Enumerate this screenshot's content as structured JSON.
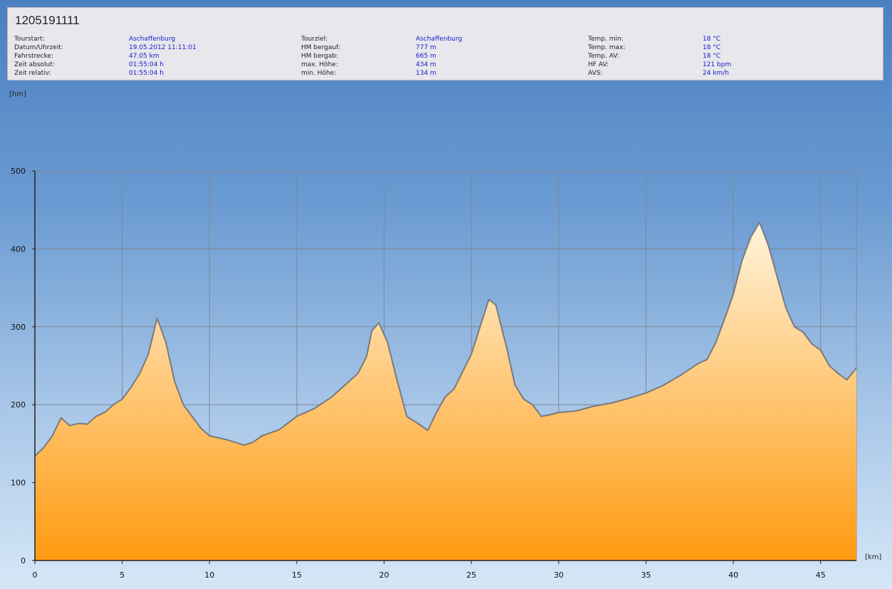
{
  "title": "1205191111",
  "info_columns": [
    [
      {
        "label": "Tourstart:",
        "value": "Aschaffenburg"
      },
      {
        "label": "Datum/Uhrzeit:",
        "value": "19.05.2012 11:11:01"
      },
      {
        "label": "Fahrstrecke:",
        "value": "47.05 km"
      },
      {
        "label": "Zeit absolut:",
        "value": "01:55:04 h"
      },
      {
        "label": "Zeit relativ:",
        "value": "01:55:04 h"
      }
    ],
    [
      {
        "label": "Tourziel:",
        "value": "Aschaffenburg"
      },
      {
        "label": "HM bergauf:",
        "value": "777 m"
      },
      {
        "label": "HM bergab:",
        "value": "665 m"
      },
      {
        "label": "max. Höhe:",
        "value": "434 m"
      },
      {
        "label": "min. Höhe:",
        "value": "134 m"
      }
    ],
    [
      {
        "label": "Temp. min:",
        "value": "18 °C"
      },
      {
        "label": "Temp. max:",
        "value": "18 °C"
      },
      {
        "label": "Temp. AV:",
        "value": "18 °C"
      },
      {
        "label": "HF AV:",
        "value": "121 bpm"
      },
      {
        "label": "AVS:",
        "value": "24 km/h"
      }
    ]
  ],
  "colors": {
    "fill_top": "#fff4dc",
    "fill_bottom": "#ff9a10",
    "line": "#7a7a7a",
    "grid": "#7f8896"
  },
  "chart_data": {
    "type": "area",
    "xlabel": "[km]",
    "ylabel": "[hm]",
    "xlim": [
      0,
      47.05
    ],
    "ylim": [
      0,
      500
    ],
    "xticks": [
      0,
      5,
      10,
      15,
      20,
      25,
      30,
      35,
      40,
      45
    ],
    "yticks": [
      0,
      100,
      200,
      300,
      400,
      500
    ],
    "grid": true,
    "series": [
      {
        "x": [
          0,
          0.5,
          1,
          1.5,
          2,
          2.5,
          3,
          3.5,
          4,
          4.5,
          5,
          5.5,
          6,
          6.5,
          7,
          7.5,
          8,
          8.5,
          9,
          9.5,
          10,
          11,
          12,
          12.5,
          13,
          14,
          15,
          16,
          17,
          18,
          18.5,
          19,
          19.3,
          19.7,
          20.2,
          20.7,
          21.3,
          22,
          22.5,
          23,
          23.5,
          24,
          25,
          25.5,
          26,
          26.4,
          27,
          27.5,
          28,
          28.5,
          29,
          29.5,
          30,
          31,
          32,
          33,
          34,
          35,
          36,
          37,
          38,
          38.5,
          39,
          39.5,
          40,
          40.5,
          41,
          41.5,
          42,
          42.5,
          43,
          43.5,
          44,
          44.5,
          45,
          45.5,
          46,
          46.5,
          47.05
        ],
        "y": [
          134,
          145,
          160,
          183,
          173,
          176,
          175,
          185,
          190,
          200,
          207,
          222,
          240,
          265,
          311,
          280,
          230,
          200,
          185,
          170,
          160,
          155,
          148,
          152,
          160,
          168,
          185,
          195,
          210,
          230,
          240,
          262,
          295,
          305,
          280,
          235,
          185,
          175,
          167,
          190,
          210,
          220,
          265,
          300,
          335,
          328,
          275,
          225,
          207,
          200,
          185,
          187,
          190,
          192,
          198,
          202,
          208,
          215,
          225,
          238,
          253,
          258,
          280,
          310,
          342,
          385,
          415,
          434,
          405,
          365,
          325,
          300,
          293,
          278,
          270,
          250,
          240,
          232,
          247
        ]
      }
    ]
  }
}
